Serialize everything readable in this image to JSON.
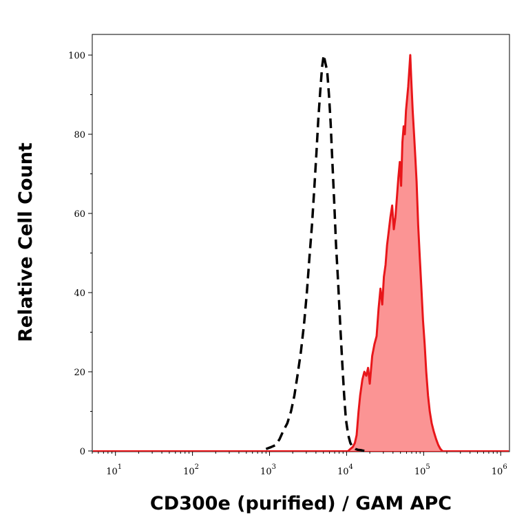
{
  "chart_data": {
    "type": "histogram",
    "xlabel": "CD300e (purified) / GAM APC",
    "ylabel": "Relative Cell Count",
    "x_scale": "log",
    "xlim": [
      5,
      1300000
    ],
    "ylim": [
      0,
      100
    ],
    "y_ticks": [
      {
        "value": 0,
        "label": "0"
      },
      {
        "value": 20,
        "label": "20"
      },
      {
        "value": 40,
        "label": "40"
      },
      {
        "value": 60,
        "label": "60"
      },
      {
        "value": 80,
        "label": "80"
      },
      {
        "value": 100,
        "label": "100"
      }
    ],
    "x_ticks": [
      {
        "value": 10,
        "base": "10",
        "exp": "1"
      },
      {
        "value": 100,
        "base": "10",
        "exp": "2"
      },
      {
        "value": 1000,
        "base": "10",
        "exp": "3"
      },
      {
        "value": 10000,
        "base": "10",
        "exp": "4"
      },
      {
        "value": 100000,
        "base": "10",
        "exp": "5"
      },
      {
        "value": 1000000,
        "base": "10",
        "exp": "6"
      }
    ],
    "grid": false,
    "legend": "none",
    "series": [
      {
        "style": "dashed",
        "color": "#000000",
        "fill": "none",
        "x": [
          900,
          1050,
          1200,
          1350,
          1500,
          1700,
          1900,
          2100,
          2300,
          2550,
          2800,
          3050,
          3300,
          3550,
          3800,
          4050,
          4300,
          4550,
          4800,
          5050,
          5300,
          5600,
          5900,
          6200,
          6500,
          6900,
          7300,
          7800,
          8300,
          8800,
          9300,
          9800,
          10500,
          11200,
          12000,
          13000,
          14000,
          15500,
          17000
        ],
        "y": [
          0.5,
          1,
          1.5,
          3,
          5,
          7,
          10,
          14,
          19,
          25,
          32,
          40,
          49,
          57,
          66,
          75,
          84,
          91,
          97,
          100,
          98,
          96,
          90,
          83,
          74,
          63,
          52,
          42,
          31,
          22,
          14,
          8,
          4,
          2,
          1,
          0.5,
          0.3,
          0.2,
          0
        ]
      },
      {
        "style": "solid",
        "color": "#e8161a",
        "fill": "#fb9494",
        "x": [
          10500,
          11200,
          12000,
          12800,
          13500,
          14300,
          15000,
          16000,
          17000,
          18000,
          19000,
          20000,
          21500,
          23000,
          24500,
          26000,
          27500,
          29000,
          30500,
          32000,
          33500,
          35000,
          37000,
          39000,
          41000,
          43000,
          45000,
          47000,
          49000,
          51000,
          53000,
          55000,
          57000,
          59000,
          61000,
          63000,
          65000,
          67000,
          69000,
          72000,
          75000,
          78000,
          81000,
          85000,
          89000,
          93000,
          98000,
          103000,
          108000,
          114000,
          120000,
          127000,
          135000,
          145000,
          155000,
          165000,
          175000
        ],
        "y": [
          0,
          0.5,
          1,
          2,
          4,
          10,
          14,
          18,
          20,
          19,
          21,
          17,
          24,
          27,
          29,
          36,
          41,
          37,
          44,
          47,
          52,
          55,
          59,
          62,
          56,
          59,
          64,
          69,
          73,
          67,
          78,
          82,
          80,
          86,
          89,
          92,
          96,
          100,
          94,
          86,
          80,
          74,
          68,
          57,
          49,
          42,
          33,
          27,
          20,
          14,
          10,
          7,
          5,
          3,
          1.5,
          0.5,
          0
        ]
      }
    ]
  }
}
